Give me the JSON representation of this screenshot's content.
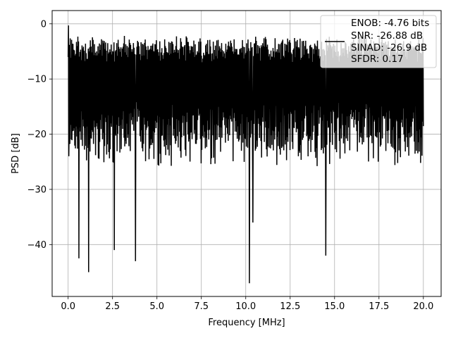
{
  "chart_data": {
    "type": "line",
    "title": "",
    "xlabel": "Frequency [MHz]",
    "ylabel": "PSD [dB]",
    "xlim": [
      -0.9,
      21.0
    ],
    "ylim": [
      -49.4,
      2.4
    ],
    "xticks": [
      0.0,
      2.5,
      5.0,
      7.5,
      10.0,
      12.5,
      15.0,
      17.5,
      20.0
    ],
    "xtick_labels": [
      "0.0",
      "2.5",
      "5.0",
      "7.5",
      "10.0",
      "12.5",
      "15.0",
      "17.5",
      "20.0"
    ],
    "yticks": [
      0,
      -10,
      -20,
      -30,
      -40
    ],
    "ytick_labels": [
      "0",
      "−10",
      "−20",
      "−30",
      "−40"
    ],
    "grid": true,
    "legend": {
      "position": "top-right",
      "lines": [
        "ENOB: -4.76 bits",
        "SNR: -26.88 dB",
        "SINAD: -26.9 dB",
        "SFDR: 0.17"
      ]
    },
    "series": [
      {
        "color": "#000000",
        "x_range": [
          0.0,
          20.0
        ],
        "points": 1024,
        "band_top": [
          -5.2,
          -2.0
        ],
        "band_bottom": [
          -26,
          -17
        ],
        "peak": {
          "x": 0.02,
          "y": -0.3
        },
        "deep_dips": [
          {
            "x": 0.6,
            "y": -42.5
          },
          {
            "x": 1.15,
            "y": -45.0
          },
          {
            "x": 2.6,
            "y": -41.0
          },
          {
            "x": 3.8,
            "y": -43.0
          },
          {
            "x": 10.2,
            "y": -47.0
          },
          {
            "x": 10.4,
            "y": -36.0
          },
          {
            "x": 14.5,
            "y": -42.0
          }
        ]
      }
    ]
  }
}
